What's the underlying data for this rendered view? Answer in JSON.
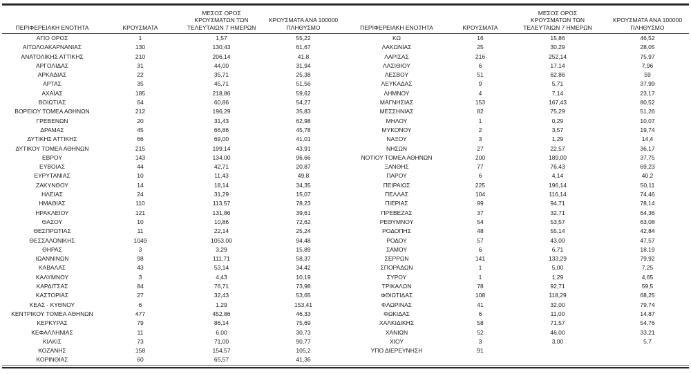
{
  "table": {
    "headers": {
      "region": "ΠΕΡΙΦΕΡΕΙΑΚΗ ΕΝΟΤΗΤΑ",
      "cases": "ΚΡΟΥΣΜΑΤΑ",
      "avg7_lines": [
        "ΜΕΣΟΣ ΟΡΟΣ",
        "ΚΡΟΥΣΜΑΤΩΝ ΤΩΝ",
        "ΤΕΛΕΥΤΑΙΩΝ 7 ΗΜΕΡΩΝ"
      ],
      "per100k_lines": [
        "ΚΡΟΥΣΜΑΤΑ ΑΝΑ 100000",
        "ΠΛΗΘΥΣΜΟ"
      ]
    },
    "left_rows": [
      [
        "ΑΓΙΟ ΟΡΟΣ",
        "1",
        "1,57",
        "55,22"
      ],
      [
        "ΑΙΤΩΛΟΑΚΑΡΝΑΝΙΑΣ",
        "130",
        "130,43",
        "61,67"
      ],
      [
        "ΑΝΑΤΟΛΙΚΗΣ ΑΤΤΙΚΗΣ",
        "210",
        "206,14",
        "41,8"
      ],
      [
        "ΑΡΓΟΛΙΔΑΣ",
        "31",
        "44,00",
        "31,94"
      ],
      [
        "ΑΡΚΑΔΙΑΣ",
        "22",
        "35,71",
        "25,38"
      ],
      [
        "ΑΡΤΑΣ",
        "35",
        "45,71",
        "51,56"
      ],
      [
        "ΑΧΑΪΑΣ",
        "185",
        "218,86",
        "59,62"
      ],
      [
        "ΒΟΙΩΤΙΑΣ",
        "64",
        "60,86",
        "54,27"
      ],
      [
        "ΒΟΡΕΙΟΥ ΤΟΜΕΑ ΑΘΗΝΩΝ",
        "212",
        "196,29",
        "35,83"
      ],
      [
        "ΓΡΕΒΕΝΩΝ",
        "20",
        "31,43",
        "62,98"
      ],
      [
        "ΔΡΑΜΑΣ",
        "45",
        "66,86",
        "45,78"
      ],
      [
        "ΔΥΤΙΚΗΣ ΑΤΤΙΚΗΣ",
        "66",
        "69,00",
        "41,01"
      ],
      [
        "ΔΥΤΙΚΟΥ ΤΟΜΕΑ ΑΘΗΝΩΝ",
        "215",
        "199,14",
        "43,91"
      ],
      [
        "ΕΒΡΟΥ",
        "143",
        "134,00",
        "96,66"
      ],
      [
        "ΕΥΒΟΙΑΣ",
        "44",
        "42,71",
        "20,87"
      ],
      [
        "ΕΥΡΥΤΑΝΙΑΣ",
        "10",
        "11,43",
        "49,8"
      ],
      [
        "ΖΑΚΥΝΘΟΥ",
        "14",
        "18,14",
        "34,35"
      ],
      [
        "ΗΛΕΙΑΣ",
        "24",
        "31,29",
        "15,07"
      ],
      [
        "ΗΜΑΘΙΑΣ",
        "110",
        "113,57",
        "78,23"
      ],
      [
        "ΗΡΑΚΛΕΙΟΥ",
        "121",
        "131,86",
        "39,61"
      ],
      [
        "ΘΑΣΟΥ",
        "10",
        "10,86",
        "72,62"
      ],
      [
        "ΘΕΣΠΡΩΤΙΑΣ",
        "11",
        "22,14",
        "25,24"
      ],
      [
        "ΘΕΣΣΑΛΟΝΙΚΗΣ",
        "1049",
        "1053,00",
        "94,48"
      ],
      [
        "ΘΗΡΑΣ",
        "3",
        "3,29",
        "15,89"
      ],
      [
        "ΙΩΑΝΝΙΝΩΝ",
        "98",
        "111,71",
        "58,37"
      ],
      [
        "ΚΑΒΑΛΑΣ",
        "43",
        "53,14",
        "34,42"
      ],
      [
        "ΚΑΛΥΜΝΟΥ",
        "3",
        "4,43",
        "10,19"
      ],
      [
        "ΚΑΡΔΙΤΣΑΣ",
        "84",
        "76,71",
        "73,98"
      ],
      [
        "ΚΑΣΤΟΡΙΑΣ",
        "27",
        "32,43",
        "53,65"
      ],
      [
        "ΚΕΑΣ - ΚΥΘΝΟΥ",
        "6",
        "1,29",
        "153,41"
      ],
      [
        "ΚΕΝΤΡΙΚΟΥ ΤΟΜΕΑ ΑΘΗΝΩΝ",
        "477",
        "452,86",
        "46,33"
      ],
      [
        "ΚΕΡΚΥΡΑΣ",
        "79",
        "86,14",
        "75,69"
      ],
      [
        "ΚΕΦΑΛΛΗΝΙΑΣ",
        "11",
        "6,00",
        "30,73"
      ],
      [
        "ΚΙΛΚΙΣ",
        "73",
        "71,00",
        "90,77"
      ],
      [
        "ΚΟΖΑΝΗΣ",
        "158",
        "154,57",
        "105,2"
      ],
      [
        "ΚΟΡΙΝΘΙΑΣ",
        "60",
        "65,57",
        "41,36"
      ]
    ],
    "right_rows": [
      [
        "ΚΩ",
        "16",
        "15,86",
        "46,52"
      ],
      [
        "ΛΑΚΩΝΙΑΣ",
        "25",
        "30,29",
        "28,05"
      ],
      [
        "ΛΑΡΙΣΑΣ",
        "216",
        "252,14",
        "75,97"
      ],
      [
        "ΛΑΣΙΘΙΟΥ",
        "6",
        "17,14",
        "7,96"
      ],
      [
        "ΛΕΣΒΟΥ",
        "51",
        "62,86",
        "59"
      ],
      [
        "ΛΕΥΚΑΔΑΣ",
        "9",
        "5,71",
        "37,99"
      ],
      [
        "ΛΗΜΝΟΥ",
        "4",
        "7,14",
        "23,17"
      ],
      [
        "ΜΑΓΝΗΣΙΑΣ",
        "153",
        "167,43",
        "80,52"
      ],
      [
        "ΜΕΣΣΗΝΙΑΣ",
        "82",
        "75,29",
        "51,26"
      ],
      [
        "ΜΗΛΟΥ",
        "1",
        "0,29",
        "10,07"
      ],
      [
        "ΜΥΚΟΝΟΥ",
        "2",
        "3,57",
        "19,74"
      ],
      [
        "ΝΑΞΟΥ",
        "3",
        "1,29",
        "14,4"
      ],
      [
        "ΝΗΣΩΝ",
        "27",
        "22,57",
        "36,17"
      ],
      [
        "ΝΟΤΙΟΥ ΤΟΜΕΑ ΑΘΗΝΩΝ",
        "200",
        "189,00",
        "37,75"
      ],
      [
        "ΞΑΝΘΗΣ",
        "77",
        "76,43",
        "69,23"
      ],
      [
        "ΠΑΡΟΥ",
        "6",
        "4,14",
        "40,2"
      ],
      [
        "ΠΕΙΡΑΙΩΣ",
        "225",
        "196,14",
        "50,11"
      ],
      [
        "ΠΕΛΛΑΣ",
        "104",
        "116,14",
        "74,46"
      ],
      [
        "ΠΙΕΡΙΑΣ",
        "99",
        "94,71",
        "78,14"
      ],
      [
        "ΠΡΕΒΕΖΑΣ",
        "37",
        "32,71",
        "64,36"
      ],
      [
        "ΡΕΘΥΜΝΟΥ",
        "54",
        "53,57",
        "63,08"
      ],
      [
        "ΡΟΔΟΠΗΣ",
        "48",
        "55,14",
        "42,84"
      ],
      [
        "ΡΟΔΟΥ",
        "57",
        "43,00",
        "47,57"
      ],
      [
        "ΣΑΜΟΥ",
        "6",
        "6,71",
        "18,19"
      ],
      [
        "ΣΕΡΡΩΝ",
        "141",
        "133,29",
        "79,92"
      ],
      [
        "ΣΠΟΡΑΔΩΝ",
        "1",
        "5,00",
        "7,25"
      ],
      [
        "ΣΥΡΟΥ",
        "1",
        "1,29",
        "4,65"
      ],
      [
        "ΤΡΙΚΑΛΩΝ",
        "78",
        "92,71",
        "59,5"
      ],
      [
        "ΦΘΙΩΤΙΔΑΣ",
        "108",
        "118,29",
        "68,25"
      ],
      [
        "ΦΛΩΡΙΝΑΣ",
        "41",
        "32,00",
        "79,74"
      ],
      [
        "ΦΩΚΙΔΑΣ",
        "6",
        "11,00",
        "14,87"
      ],
      [
        "ΧΑΛΚΙΔΙΚΗΣ",
        "58",
        "71,57",
        "54,76"
      ],
      [
        "ΧΑΝΙΩΝ",
        "52",
        "46,00",
        "33,21"
      ],
      [
        "ΧΙΟΥ",
        "3",
        "3,00",
        "5,7"
      ],
      [
        "ΥΠΟ ΔΙΕΡΕΥΝΗΣΗ",
        "91",
        "",
        ""
      ]
    ]
  }
}
